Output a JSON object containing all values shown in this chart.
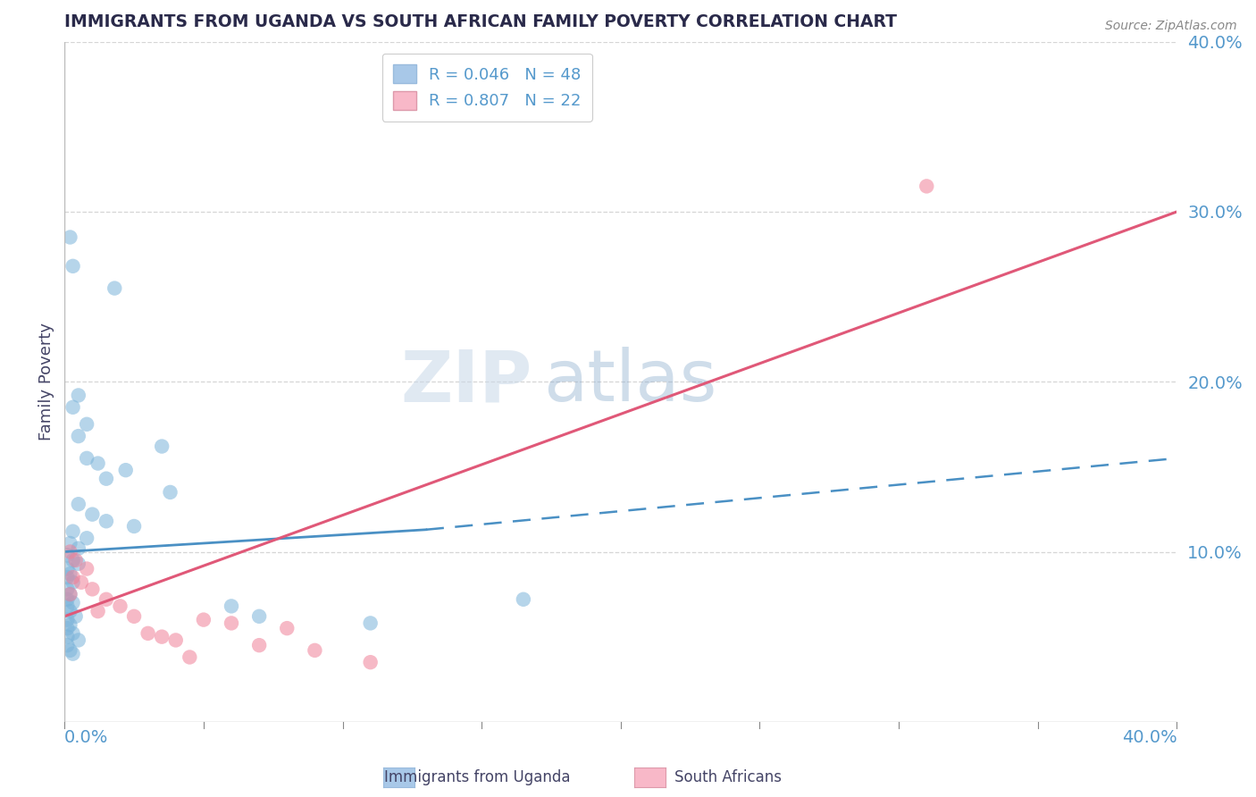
{
  "title": "IMMIGRANTS FROM UGANDA VS SOUTH AFRICAN FAMILY POVERTY CORRELATION CHART",
  "source": "Source: ZipAtlas.com",
  "ylabel": "Family Poverty",
  "xlim": [
    0.0,
    0.4
  ],
  "ylim": [
    0.0,
    0.4
  ],
  "yticks": [
    0.0,
    0.1,
    0.2,
    0.3,
    0.4
  ],
  "ytick_labels": [
    "",
    "10.0%",
    "20.0%",
    "30.0%",
    "40.0%"
  ],
  "legend_entries": [
    {
      "label": "R = 0.046   N = 48",
      "color": "#a8c8e8"
    },
    {
      "label": "R = 0.807   N = 22",
      "color": "#f8b8c8"
    }
  ],
  "watermark_zip": "ZIP",
  "watermark_atlas": "atlas",
  "uganda_color": "#7ab3d9",
  "sa_color": "#f08098",
  "uganda_line_color": "#4a90c4",
  "sa_line_color": "#e05878",
  "uganda_points": [
    [
      0.002,
      0.285
    ],
    [
      0.003,
      0.268
    ],
    [
      0.018,
      0.255
    ],
    [
      0.005,
      0.192
    ],
    [
      0.003,
      0.185
    ],
    [
      0.008,
      0.175
    ],
    [
      0.005,
      0.168
    ],
    [
      0.035,
      0.162
    ],
    [
      0.008,
      0.155
    ],
    [
      0.012,
      0.152
    ],
    [
      0.022,
      0.148
    ],
    [
      0.015,
      0.143
    ],
    [
      0.038,
      0.135
    ],
    [
      0.005,
      0.128
    ],
    [
      0.01,
      0.122
    ],
    [
      0.015,
      0.118
    ],
    [
      0.025,
      0.115
    ],
    [
      0.003,
      0.112
    ],
    [
      0.008,
      0.108
    ],
    [
      0.002,
      0.105
    ],
    [
      0.005,
      0.102
    ],
    [
      0.001,
      0.098
    ],
    [
      0.003,
      0.095
    ],
    [
      0.005,
      0.093
    ],
    [
      0.001,
      0.09
    ],
    [
      0.002,
      0.087
    ],
    [
      0.001,
      0.085
    ],
    [
      0.003,
      0.082
    ],
    [
      0.001,
      0.078
    ],
    [
      0.002,
      0.075
    ],
    [
      0.001,
      0.072
    ],
    [
      0.003,
      0.07
    ],
    [
      0.001,
      0.068
    ],
    [
      0.002,
      0.065
    ],
    [
      0.004,
      0.062
    ],
    [
      0.001,
      0.06
    ],
    [
      0.002,
      0.057
    ],
    [
      0.001,
      0.055
    ],
    [
      0.003,
      0.052
    ],
    [
      0.001,
      0.05
    ],
    [
      0.005,
      0.048
    ],
    [
      0.001,
      0.045
    ],
    [
      0.002,
      0.042
    ],
    [
      0.06,
      0.068
    ],
    [
      0.07,
      0.062
    ],
    [
      0.11,
      0.058
    ],
    [
      0.165,
      0.072
    ],
    [
      0.003,
      0.04
    ]
  ],
  "sa_points": [
    [
      0.31,
      0.315
    ],
    [
      0.002,
      0.1
    ],
    [
      0.004,
      0.095
    ],
    [
      0.008,
      0.09
    ],
    [
      0.003,
      0.085
    ],
    [
      0.006,
      0.082
    ],
    [
      0.01,
      0.078
    ],
    [
      0.002,
      0.075
    ],
    [
      0.015,
      0.072
    ],
    [
      0.02,
      0.068
    ],
    [
      0.012,
      0.065
    ],
    [
      0.025,
      0.062
    ],
    [
      0.05,
      0.06
    ],
    [
      0.06,
      0.058
    ],
    [
      0.08,
      0.055
    ],
    [
      0.03,
      0.052
    ],
    [
      0.035,
      0.05
    ],
    [
      0.04,
      0.048
    ],
    [
      0.07,
      0.045
    ],
    [
      0.09,
      0.042
    ],
    [
      0.045,
      0.038
    ],
    [
      0.11,
      0.035
    ]
  ],
  "uganda_line_x0": 0.0,
  "uganda_line_x_solid_end": 0.13,
  "uganda_line_x1": 0.4,
  "uganda_line_y0": 0.1,
  "uganda_line_y_solid_end": 0.113,
  "uganda_line_y1": 0.155,
  "sa_line_x0": 0.0,
  "sa_line_x1": 0.4,
  "sa_line_y0": 0.062,
  "sa_line_y1": 0.3,
  "grid_color": "#cccccc",
  "bg_color": "#ffffff",
  "title_color": "#2a2a4a",
  "axis_label_color": "#5599cc",
  "legend_text_color": "#5599cc",
  "legend_box_color_uganda": "#a8c8e8",
  "legend_box_color_sa": "#f8b8c8"
}
